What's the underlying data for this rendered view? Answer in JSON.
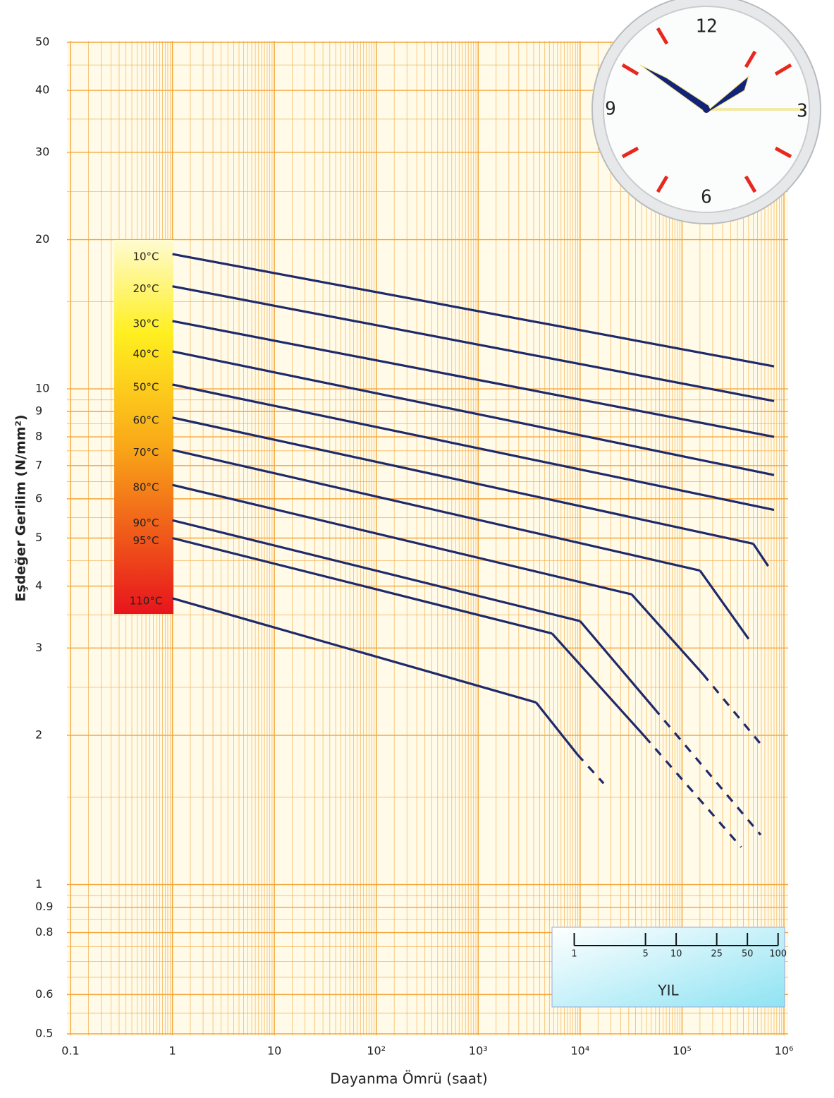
{
  "chart_data": {
    "type": "line",
    "x_label": "Dayanma Ömrü (saat)",
    "y_label": "Eşdeğer Gerilim (N/mm²)",
    "xscale": "log",
    "yscale": "log",
    "xlim": [
      0.1,
      1000000
    ],
    "ylim": [
      0.5,
      50
    ],
    "xticks": [
      0.1,
      1,
      10,
      {
        "value": 100,
        "label": "10²"
      },
      {
        "value": 1000,
        "label": "10³"
      },
      {
        "value": 10000,
        "label": "10⁴"
      },
      {
        "value": 100000,
        "label": "10⁵"
      },
      {
        "value": 1000000,
        "label": "10⁶"
      }
    ],
    "yticks": [
      50,
      40,
      30,
      20,
      10,
      9,
      8,
      7,
      6,
      5,
      4,
      3,
      2,
      1,
      0.9,
      0.8,
      0.6,
      0.5
    ],
    "grid": true,
    "minor_grid": true,
    "grid_color": "#f4a53a",
    "series": [
      {
        "name": "10°C",
        "color": "#1f2a6b",
        "x": [
          1,
          800000
        ],
        "values": [
          18.7,
          11.1
        ],
        "segments": [
          "solid"
        ]
      },
      {
        "name": "20°C",
        "color": "#1f2a6b",
        "x": [
          1,
          800000
        ],
        "values": [
          16.1,
          9.45
        ],
        "segments": [
          "solid"
        ]
      },
      {
        "name": "30°C",
        "color": "#1f2a6b",
        "x": [
          1,
          800000
        ],
        "values": [
          13.7,
          8.0
        ],
        "segments": [
          "solid"
        ]
      },
      {
        "name": "40°C",
        "color": "#1f2a6b",
        "x": [
          1,
          800000
        ],
        "values": [
          11.9,
          6.7
        ],
        "segments": [
          "solid"
        ]
      },
      {
        "name": "50°C",
        "color": "#1f2a6b",
        "x": [
          1,
          800000
        ],
        "values": [
          10.2,
          5.7
        ],
        "segments": [
          "solid"
        ]
      },
      {
        "name": "60°C",
        "color": "#1f2a6b",
        "x": [
          1,
          500000,
          700000
        ],
        "values": [
          8.75,
          4.87,
          4.39
        ],
        "segments": [
          "solid",
          "solid"
        ]
      },
      {
        "name": "70°C",
        "color": "#1f2a6b",
        "x": [
          1,
          150000,
          450000
        ],
        "values": [
          7.53,
          4.3,
          3.13
        ],
        "segments": [
          "solid",
          "solid"
        ]
      },
      {
        "name": "80°C",
        "color": "#1f2a6b",
        "x": [
          1,
          32000,
          160000,
          580000
        ],
        "values": [
          6.4,
          3.85,
          2.66,
          1.93
        ],
        "segments": [
          "solid",
          "solid",
          "dashed"
        ]
      },
      {
        "name": "90°C",
        "color": "#1f2a6b",
        "x": [
          1,
          10000,
          53000,
          590000
        ],
        "values": [
          5.43,
          3.4,
          2.27,
          1.26
        ],
        "segments": [
          "solid",
          "solid",
          "dashed"
        ]
      },
      {
        "name": "95°C",
        "color": "#1f2a6b",
        "x": [
          1,
          5300,
          43000,
          380000
        ],
        "values": [
          5.0,
          3.21,
          1.99,
          1.19
        ],
        "segments": [
          "solid",
          "solid",
          "dashed"
        ]
      },
      {
        "name": "110°C",
        "color": "#1f2a6b",
        "x": [
          1,
          3700,
          9400,
          17000
        ],
        "values": [
          3.78,
          2.33,
          1.83,
          1.6
        ],
        "segments": [
          "solid",
          "solid",
          "dashed"
        ]
      }
    ],
    "year_scale": {
      "label": "YIL",
      "ticks": [
        1,
        5,
        10,
        25,
        50,
        100
      ]
    },
    "clock": {
      "numerals": [
        "12",
        "3",
        "6",
        "9"
      ]
    }
  }
}
